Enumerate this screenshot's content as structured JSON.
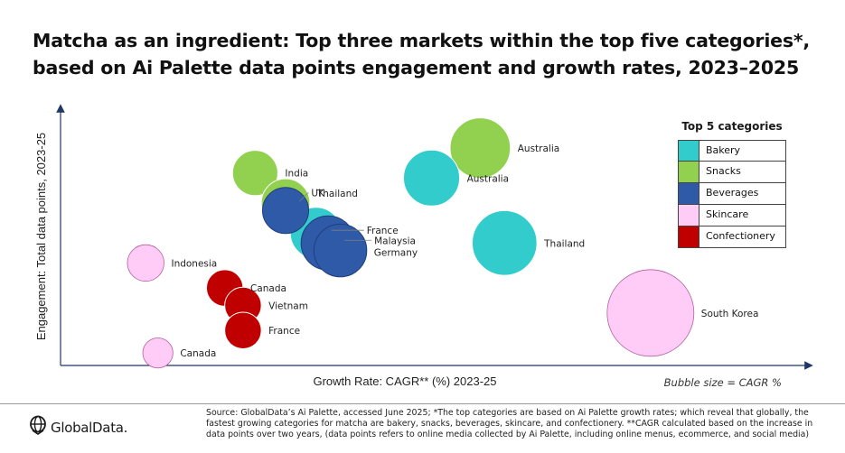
{
  "title_lines": [
    "Matcha as an ingredient: Top three markets within the top five categories*,",
    "based on Ai Palette data points engagement and growth rates, 2023–2025"
  ],
  "chart_data": {
    "type": "scatter",
    "title": "Matcha as an ingredient: Top three markets within the top five categories*, based on Ai Palette data points engagement and growth rates, 2023–2025",
    "xlabel": "Growth Rate: CAGR** (%) 2023-25",
    "ylabel": "Engagement: Total data points, 2023-25",
    "x_ticks_shown": false,
    "y_ticks_shown": false,
    "grid": false,
    "legend_title": "Top 5 categories",
    "legend_position": "right",
    "size_note": "Bubble size = CAGR %",
    "units_note": "Relative positions only; axes carry no tick values",
    "series": [
      {
        "name": "Bakery",
        "color": "#33cccc",
        "points": [
          {
            "label": "Australia",
            "x": 0.61,
            "y": 0.75,
            "size": 0.35
          },
          {
            "label": "Thailand",
            "x": 0.73,
            "y": 0.49,
            "size": 0.5
          },
          {
            "label": "France",
            "x": 0.42,
            "y": 0.53,
            "size": 0.28
          }
        ]
      },
      {
        "name": "Snacks",
        "color": "#92d050",
        "points": [
          {
            "label": "Australia",
            "x": 0.69,
            "y": 0.87,
            "size": 0.42
          },
          {
            "label": "India",
            "x": 0.32,
            "y": 0.77,
            "size": 0.2
          },
          {
            "label": "Thailand",
            "x": 0.37,
            "y": 0.65,
            "size": 0.24
          }
        ]
      },
      {
        "name": "Beverages",
        "color": "#2e5aa8",
        "points": [
          {
            "label": "UK",
            "x": 0.37,
            "y": 0.62,
            "size": 0.21
          },
          {
            "label": "Malaysia",
            "x": 0.44,
            "y": 0.49,
            "size": 0.32
          },
          {
            "label": "Germany",
            "x": 0.46,
            "y": 0.46,
            "size": 0.3
          }
        ]
      },
      {
        "name": "Skincare",
        "color": "#ffccf7",
        "points": [
          {
            "label": "South Korea",
            "x": 0.97,
            "y": 0.21,
            "size": 1.0
          },
          {
            "label": "Indonesia",
            "x": 0.14,
            "y": 0.41,
            "size": 0.11
          },
          {
            "label": "Canada",
            "x": 0.16,
            "y": 0.05,
            "size": 0.06
          }
        ]
      },
      {
        "name": "Confectionery",
        "color": "#c00000",
        "points": [
          {
            "label": "Canada",
            "x": 0.27,
            "y": 0.31,
            "size": 0.11
          },
          {
            "label": "Vietnam",
            "x": 0.3,
            "y": 0.24,
            "size": 0.11
          },
          {
            "label": "France",
            "x": 0.3,
            "y": 0.14,
            "size": 0.11
          }
        ]
      }
    ]
  },
  "source_text": "Source: GlobalData’s Ai Palette, accessed June 2025; *The top categories are based on Ai Palette growth rates; which reveal that globally, the fastest growing categories for matcha are bakery, snacks, beverages, skincare, and confectionery. **CAGR calculated based on the increase in data points over two years, (data points refers to online media collected by Ai Palette, including online menus, ecommerce, and social media)",
  "logo_text": "GlobalData.",
  "logo_icon": "globaldata-globe-icon"
}
